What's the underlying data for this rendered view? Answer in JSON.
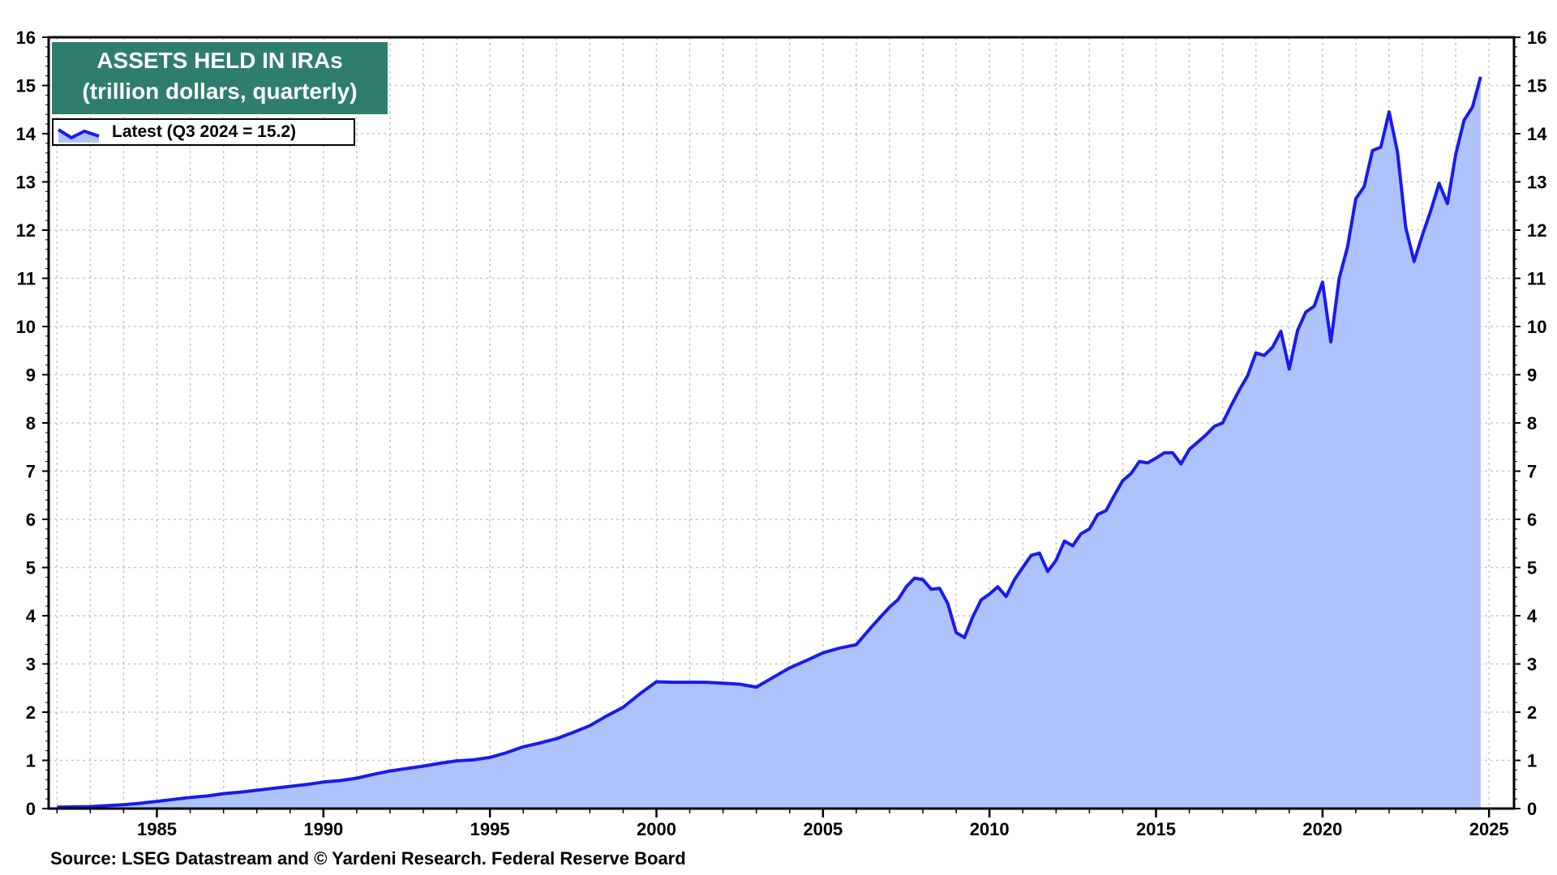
{
  "chart_data": {
    "type": "area",
    "title": "ASSETS HELD IN IRAs",
    "subtitle": "(trillion dollars, quarterly)",
    "legend": {
      "label": "Latest (Q3 2024 = 15.2)",
      "placement": "top-left"
    },
    "source": "Source: LSEG Datastream and © Yardeni Research. Federal Reserve Board",
    "xlim": [
      1981.75,
      2025.75
    ],
    "ylim": [
      0,
      16
    ],
    "x_ticks": [
      1985,
      1990,
      1995,
      2000,
      2005,
      2010,
      2015,
      2020,
      2025
    ],
    "y_ticks": [
      0,
      1,
      2,
      3,
      4,
      5,
      6,
      7,
      8,
      9,
      10,
      11,
      12,
      13,
      14,
      15,
      16
    ],
    "y_axis_both_sides": true,
    "grid": true,
    "colors": {
      "line": "#1a1aee",
      "fill": "#aec3fb",
      "title_bg": "#2e7d6e"
    },
    "series": [
      {
        "name": "Latest (Q3 2024 = 15.2)",
        "points": [
          [
            1982.0,
            0.03
          ],
          [
            1983.0,
            0.04
          ],
          [
            1983.5,
            0.06
          ],
          [
            1984.0,
            0.08
          ],
          [
            1984.5,
            0.11
          ],
          [
            1985.0,
            0.15
          ],
          [
            1985.5,
            0.19
          ],
          [
            1986.0,
            0.23
          ],
          [
            1986.5,
            0.26
          ],
          [
            1987.0,
            0.31
          ],
          [
            1987.5,
            0.34
          ],
          [
            1988.0,
            0.38
          ],
          [
            1988.5,
            0.42
          ],
          [
            1989.0,
            0.46
          ],
          [
            1989.5,
            0.5
          ],
          [
            1990.0,
            0.55
          ],
          [
            1990.5,
            0.58
          ],
          [
            1991.0,
            0.63
          ],
          [
            1991.5,
            0.71
          ],
          [
            1992.0,
            0.78
          ],
          [
            1992.5,
            0.83
          ],
          [
            1993.0,
            0.88
          ],
          [
            1993.5,
            0.94
          ],
          [
            1994.0,
            0.99
          ],
          [
            1994.5,
            1.01
          ],
          [
            1995.0,
            1.06
          ],
          [
            1995.5,
            1.16
          ],
          [
            1996.0,
            1.28
          ],
          [
            1996.5,
            1.36
          ],
          [
            1997.0,
            1.45
          ],
          [
            1997.5,
            1.58
          ],
          [
            1998.0,
            1.72
          ],
          [
            1998.5,
            1.92
          ],
          [
            1999.0,
            2.1
          ],
          [
            1999.5,
            2.38
          ],
          [
            2000.0,
            2.63
          ],
          [
            2000.5,
            2.62
          ],
          [
            2001.0,
            2.62
          ],
          [
            2001.5,
            2.62
          ],
          [
            2002.0,
            2.6
          ],
          [
            2002.5,
            2.58
          ],
          [
            2003.0,
            2.52
          ],
          [
            2003.5,
            2.72
          ],
          [
            2004.0,
            2.92
          ],
          [
            2004.5,
            3.07
          ],
          [
            2005.0,
            3.23
          ],
          [
            2005.5,
            3.33
          ],
          [
            2006.0,
            3.4
          ],
          [
            2006.5,
            3.8
          ],
          [
            2007.0,
            4.18
          ],
          [
            2007.25,
            4.33
          ],
          [
            2007.5,
            4.6
          ],
          [
            2007.75,
            4.78
          ],
          [
            2008.0,
            4.75
          ],
          [
            2008.25,
            4.55
          ],
          [
            2008.5,
            4.57
          ],
          [
            2008.75,
            4.25
          ],
          [
            2009.0,
            3.65
          ],
          [
            2009.25,
            3.55
          ],
          [
            2009.5,
            3.98
          ],
          [
            2009.75,
            4.33
          ],
          [
            2010.0,
            4.45
          ],
          [
            2010.25,
            4.6
          ],
          [
            2010.5,
            4.4
          ],
          [
            2010.75,
            4.75
          ],
          [
            2011.0,
            5.0
          ],
          [
            2011.25,
            5.25
          ],
          [
            2011.5,
            5.3
          ],
          [
            2011.75,
            4.92
          ],
          [
            2012.0,
            5.15
          ],
          [
            2012.25,
            5.55
          ],
          [
            2012.5,
            5.45
          ],
          [
            2012.75,
            5.7
          ],
          [
            2013.0,
            5.8
          ],
          [
            2013.25,
            6.1
          ],
          [
            2013.5,
            6.18
          ],
          [
            2013.75,
            6.5
          ],
          [
            2014.0,
            6.8
          ],
          [
            2014.25,
            6.95
          ],
          [
            2014.5,
            7.2
          ],
          [
            2014.75,
            7.17
          ],
          [
            2015.0,
            7.27
          ],
          [
            2015.25,
            7.38
          ],
          [
            2015.5,
            7.38
          ],
          [
            2015.75,
            7.15
          ],
          [
            2016.0,
            7.45
          ],
          [
            2016.25,
            7.6
          ],
          [
            2016.5,
            7.75
          ],
          [
            2016.75,
            7.93
          ],
          [
            2017.0,
            8.0
          ],
          [
            2017.25,
            8.35
          ],
          [
            2017.5,
            8.68
          ],
          [
            2017.75,
            8.98
          ],
          [
            2018.0,
            9.45
          ],
          [
            2018.25,
            9.4
          ],
          [
            2018.5,
            9.57
          ],
          [
            2018.75,
            9.9
          ],
          [
            2019.0,
            9.12
          ],
          [
            2019.25,
            9.92
          ],
          [
            2019.5,
            10.3
          ],
          [
            2019.75,
            10.42
          ],
          [
            2020.0,
            10.92
          ],
          [
            2020.25,
            9.68
          ],
          [
            2020.5,
            11.0
          ],
          [
            2020.75,
            11.65
          ],
          [
            2021.0,
            12.65
          ],
          [
            2021.25,
            12.9
          ],
          [
            2021.5,
            13.65
          ],
          [
            2021.75,
            13.72
          ],
          [
            2022.0,
            14.45
          ],
          [
            2022.25,
            13.62
          ],
          [
            2022.5,
            12.05
          ],
          [
            2022.75,
            11.35
          ],
          [
            2023.0,
            11.9
          ],
          [
            2023.25,
            12.4
          ],
          [
            2023.5,
            12.97
          ],
          [
            2023.75,
            12.55
          ],
          [
            2024.0,
            13.57
          ],
          [
            2024.25,
            14.28
          ],
          [
            2024.5,
            14.55
          ],
          [
            2024.75,
            15.18
          ]
        ]
      }
    ]
  }
}
